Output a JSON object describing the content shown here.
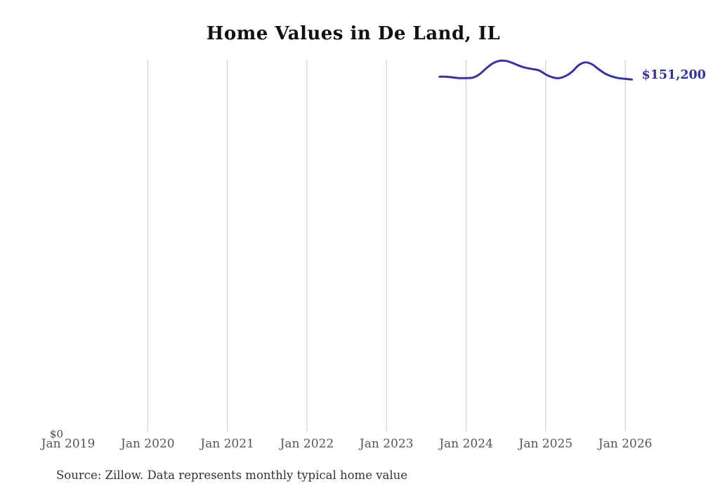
{
  "page": {
    "source_note": "Source: Zillow. Data represents monthly typical home value"
  },
  "chart_data": {
    "type": "line",
    "title": "Home Values in De Land, IL",
    "series": [
      {
        "name": "Monthly typical home value",
        "months": [
          "2023-09",
          "2023-10",
          "2023-11",
          "2023-12",
          "2024-01",
          "2024-02",
          "2024-03",
          "2024-04",
          "2024-05",
          "2024-06",
          "2024-07",
          "2024-08",
          "2024-09",
          "2024-10",
          "2024-11",
          "2024-12",
          "2025-01",
          "2025-02",
          "2025-03",
          "2025-04",
          "2025-05",
          "2025-06",
          "2025-07",
          "2025-08",
          "2025-09",
          "2025-10",
          "2025-11",
          "2025-12",
          "2026-01",
          "2026-02"
        ],
        "values": [
          152400,
          152400,
          152100,
          151800,
          151800,
          152000,
          153400,
          155900,
          158100,
          159200,
          159200,
          158300,
          157100,
          156200,
          155700,
          155100,
          153400,
          152200,
          151800,
          152700,
          154600,
          157400,
          158600,
          157700,
          155600,
          153700,
          152500,
          151800,
          151500,
          151200
        ]
      }
    ],
    "x_axis": {
      "ticks": [
        {
          "label": "Jan 2019",
          "month": "2019-01",
          "gridline": false
        },
        {
          "label": "Jan 2020",
          "month": "2020-01",
          "gridline": true
        },
        {
          "label": "Jan 2021",
          "month": "2021-01",
          "gridline": true
        },
        {
          "label": "Jan 2022",
          "month": "2022-01",
          "gridline": true
        },
        {
          "label": "Jan 2023",
          "month": "2023-01",
          "gridline": true
        },
        {
          "label": "Jan 2024",
          "month": "2024-01",
          "gridline": true
        },
        {
          "label": "Jan 2025",
          "month": "2025-01",
          "gridline": true
        },
        {
          "label": "Jan 2026",
          "month": "2026-01",
          "gridline": true
        }
      ]
    },
    "y_axis": {
      "zero_label": "$0"
    },
    "ylim": [
      0,
      159700
    ],
    "end_label": "$151,200",
    "grid": "vertical",
    "legend": "none",
    "colors": {
      "line": "#35359d",
      "end_label": "#32329c",
      "gridline": "#c9c9c9"
    }
  }
}
